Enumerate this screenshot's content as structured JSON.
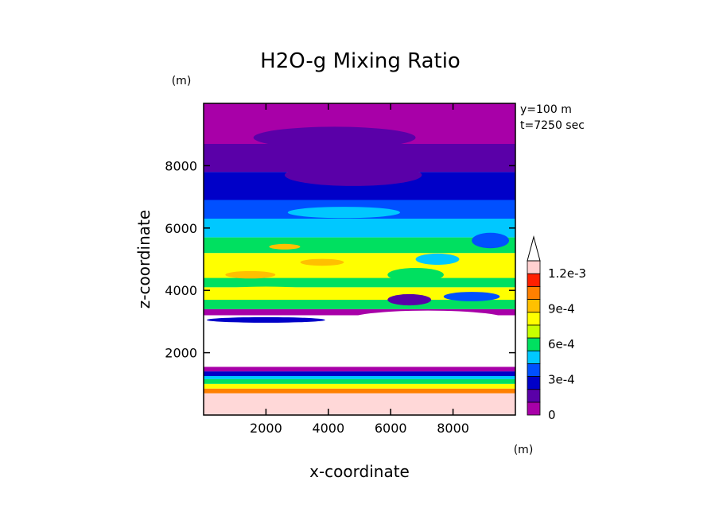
{
  "chart_data": {
    "type": "heatmap",
    "title": "H2O-g Mixing Ratio",
    "xlabel": "x-coordinate",
    "ylabel": "z-coordinate",
    "x_unit": "(m)",
    "y_unit": "(m)",
    "annotations": [
      "y=100 m",
      "t=7250 sec"
    ],
    "xlim": [
      0,
      10000
    ],
    "ylim": [
      0,
      10000
    ],
    "x_ticks": [
      {
        "value": 2000,
        "label": "2000"
      },
      {
        "value": 4000,
        "label": "4000"
      },
      {
        "value": 6000,
        "label": "6000"
      },
      {
        "value": 8000,
        "label": "8000"
      }
    ],
    "y_ticks": [
      {
        "value": 2000,
        "label": "2000"
      },
      {
        "value": 4000,
        "label": "4000"
      },
      {
        "value": 6000,
        "label": "6000"
      },
      {
        "value": 8000,
        "label": "8000"
      }
    ],
    "colorbar": {
      "levels": [
        0,
        0.00015,
        0.0003,
        0.00045,
        0.0006,
        0.00075,
        0.0009,
        0.00105,
        0.0012
      ],
      "colors": [
        "#a800a8",
        "#5a00a8",
        "#0000c8",
        "#0050ff",
        "#00c8ff",
        "#00e060",
        "#c8ff00",
        "#ffff00",
        "#ffc000",
        "#ff8000",
        "#ff2000",
        "#ffd0d0"
      ],
      "labels": [
        {
          "value": 0,
          "label": "0"
        },
        {
          "value": 0.0003,
          "label": "3e-4"
        },
        {
          "value": 0.0006,
          "label": "6e-4"
        },
        {
          "value": 0.0009,
          "label": "9e-4"
        },
        {
          "value": 0.0012,
          "label": "1.2e-3"
        }
      ],
      "extend": "max"
    },
    "bands": [
      {
        "z": [
          0,
          700
        ],
        "value": 0.0013,
        "color": "#ffd8d8"
      },
      {
        "z": [
          700,
          850
        ],
        "value": 0.00115,
        "color": "#ff8000"
      },
      {
        "z": [
          850,
          1000
        ],
        "value": 0.0009,
        "color": "#ffff00"
      },
      {
        "z": [
          1000,
          1150
        ],
        "value": 0.0006,
        "color": "#00e060"
      },
      {
        "z": [
          1150,
          1250
        ],
        "value": 0.0004,
        "color": "#00c8ff"
      },
      {
        "z": [
          1250,
          1400
        ],
        "value": 0.00025,
        "color": "#0000c8"
      },
      {
        "z": [
          1400,
          1550
        ],
        "value": 0.0001,
        "color": "#a800a8"
      },
      {
        "z": [
          1550,
          3200
        ],
        "value": null,
        "color": "#ffffff"
      },
      {
        "z": [
          3200,
          3400
        ],
        "value": 0.0001,
        "color": "#a800a8"
      },
      {
        "z": [
          3400,
          3700
        ],
        "value": 0.0005,
        "color": "#00e060"
      },
      {
        "z": [
          3700,
          4100
        ],
        "value": 0.0007,
        "color": "#ffff00"
      },
      {
        "z": [
          4100,
          4400
        ],
        "value": 0.0006,
        "color": "#00e060"
      },
      {
        "z": [
          4400,
          5200
        ],
        "value": 0.0008,
        "color": "#ffff00"
      },
      {
        "z": [
          5200,
          5700
        ],
        "value": 0.0006,
        "color": "#00e060"
      },
      {
        "z": [
          5700,
          6300
        ],
        "value": 0.0005,
        "color": "#00c8ff"
      },
      {
        "z": [
          6300,
          6900
        ],
        "value": 0.00035,
        "color": "#0050ff"
      },
      {
        "z": [
          6900,
          7800
        ],
        "value": 0.0002,
        "color": "#0000c8"
      },
      {
        "z": [
          7800,
          8700
        ],
        "value": 0.00012,
        "color": "#5a00a8"
      },
      {
        "z": [
          8700,
          10000
        ],
        "value": 5e-05,
        "color": "#a800a8"
      }
    ]
  }
}
